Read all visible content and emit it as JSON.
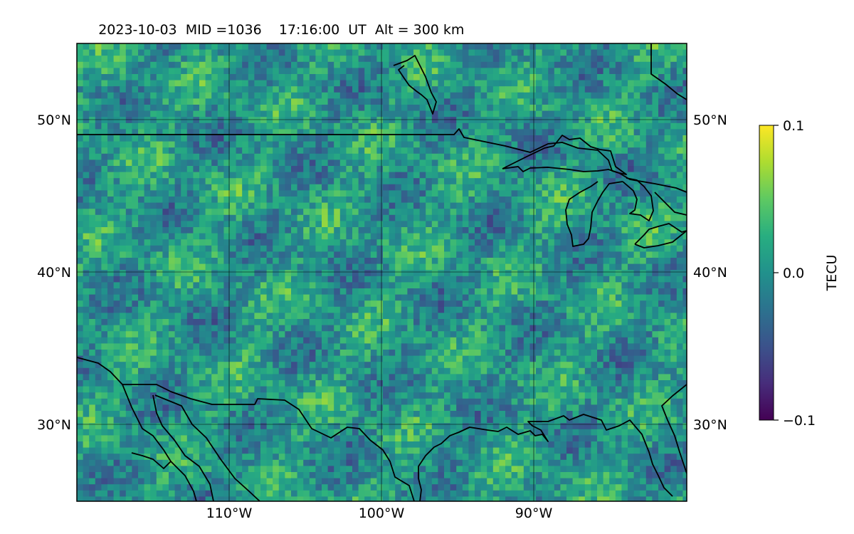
{
  "title": {
    "date": "2023-10-03",
    "mid": "MID =1036",
    "time": "17:16:00  UT",
    "alt": "Alt = 300 km"
  },
  "map": {
    "lat_range": [
      25,
      55
    ],
    "lon_range": [
      -120,
      -80
    ],
    "lat_ticks": [
      {
        "value": 50,
        "label": "50°N"
      },
      {
        "value": 40,
        "label": "40°N"
      },
      {
        "value": 30,
        "label": "30°N"
      }
    ],
    "lon_ticks": [
      {
        "value": -110,
        "label": "110°W"
      },
      {
        "value": -100,
        "label": "100°W"
      },
      {
        "value": -90,
        "label": "90°W"
      }
    ],
    "gridlines": true,
    "field": "TEC perturbation",
    "colormap": "viridis"
  },
  "colorbar": {
    "label": "TECU",
    "min": -0.1,
    "max": 0.1,
    "ticks": [
      {
        "value": 0.1,
        "label": "0.1"
      },
      {
        "value": 0.0,
        "label": "0.0"
      },
      {
        "value": -0.1,
        "label": "−0.1"
      }
    ]
  },
  "coast_color": "#000000"
}
